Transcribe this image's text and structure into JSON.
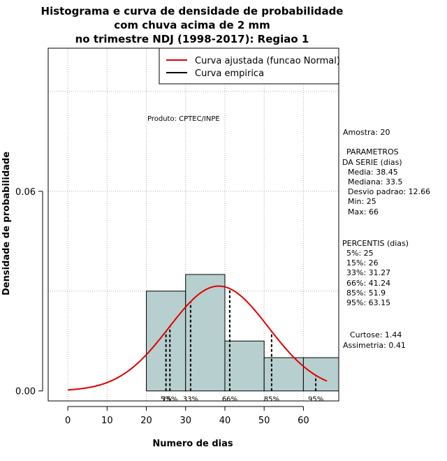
{
  "chart_data": {
    "type": "histogram",
    "title_lines": [
      "Histograma e curva de densidade de probabilidade",
      "com chuva acima de 2 mm",
      "no trimestre NDJ (1998-2017): Regiao 1"
    ],
    "xlabel": "Numero de dias",
    "ylabel": "Densidade de probabilidade",
    "xlim": [
      -5,
      69
    ],
    "ylim": [
      -0.003,
      0.103
    ],
    "x_ticks": [
      0,
      10,
      20,
      30,
      40,
      50,
      60
    ],
    "y_ticks": [
      0.0,
      0.06
    ],
    "y_tick_labels": [
      "0.00",
      "0.06"
    ],
    "grid": true,
    "bar_color": "#b7cfcf",
    "curve_color": "#e00000",
    "bins": [
      {
        "x0": 20,
        "x1": 30,
        "density": 0.03
      },
      {
        "x0": 30,
        "x1": 40,
        "density": 0.035
      },
      {
        "x0": 40,
        "x1": 50,
        "density": 0.015
      },
      {
        "x0": 50,
        "x1": 60,
        "density": 0.01
      },
      {
        "x0": 60,
        "x1": 70,
        "density": 0.01
      }
    ],
    "normal_fit": {
      "mean": 38.45,
      "sd": 12.66,
      "x_from": 0,
      "x_to": 66
    },
    "percentile_lines": [
      {
        "label": "5%",
        "x": 25
      },
      {
        "label": "15%",
        "x": 26
      },
      {
        "label": "33%",
        "x": 31.27
      },
      {
        "label": "66%",
        "x": 41.24
      },
      {
        "label": "85%",
        "x": 51.9
      },
      {
        "label": "95%",
        "x": 63.15
      }
    ],
    "legend": {
      "position": "top-right",
      "entries": [
        {
          "label": "Curva ajustada (funcao Normal)",
          "color": "#e00000"
        },
        {
          "label": "Curva empirica",
          "color": "#000000"
        }
      ]
    },
    "annotation": "Produto: CPTEC/INPE",
    "stats": {
      "amostra": "Amostra: 20",
      "param_title1": "PARAMETROS",
      "param_title2": "DA SERIE (dias)",
      "media": "Media: 38.45",
      "mediana": "Mediana: 33.5",
      "desvio": "Desvio padrao: 12.66",
      "min": "Min: 25",
      "max": "Max: 66",
      "perc_title": "PERCENTIS (dias)",
      "p5": "5%: 25",
      "p15": "15%: 26",
      "p33": "33%: 31.27",
      "p66": "66%: 41.24",
      "p85": "85%: 51.9",
      "p95": "95%: 63.15",
      "curtose": "Curtose: 1.44",
      "assimetria": "Assimetria: 0.41"
    }
  }
}
